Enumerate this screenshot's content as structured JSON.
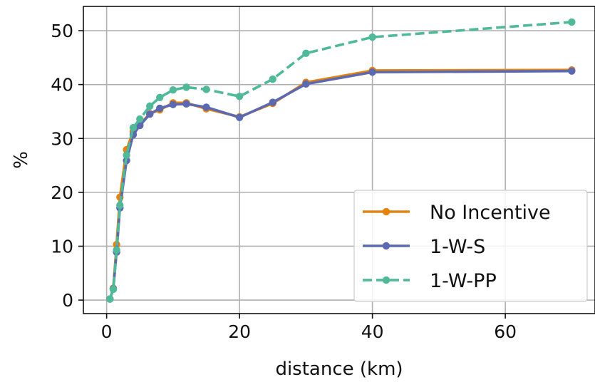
{
  "chart_data": {
    "type": "line",
    "xlabel": "distance (km)",
    "ylabel": "%",
    "xlim": [
      -3.5,
      73.5
    ],
    "ylim": [
      -2.5,
      54.5
    ],
    "xticks": [
      0,
      20,
      40,
      60
    ],
    "yticks": [
      0,
      10,
      20,
      30,
      40,
      50
    ],
    "grid": true,
    "legend_position": "lower-right",
    "series": [
      {
        "name": "No Incentive",
        "color": "#e6820e",
        "style": "solid",
        "x": [
          0.5,
          1,
          1.5,
          2,
          3,
          4,
          5,
          6.5,
          8,
          10,
          12,
          15,
          20,
          25,
          30,
          40,
          70
        ],
        "y": [
          0.2,
          2.2,
          10.3,
          19.1,
          27.9,
          31.3,
          32.6,
          34.6,
          35.3,
          36.6,
          36.6,
          35.5,
          34.0,
          36.5,
          40.4,
          42.6,
          42.7
        ]
      },
      {
        "name": "1-W-S",
        "color": "#5b6ab0",
        "style": "solid",
        "x": [
          0.5,
          1,
          1.5,
          2,
          3,
          4,
          5,
          6.5,
          8,
          10,
          12,
          15,
          20,
          25,
          30,
          40,
          70
        ],
        "y": [
          0.2,
          2.1,
          8.9,
          17.1,
          25.9,
          30.7,
          32.4,
          34.5,
          35.6,
          36.3,
          36.4,
          35.8,
          33.9,
          36.7,
          40.1,
          42.3,
          42.5
        ]
      },
      {
        "name": "1-W-PP",
        "color": "#4fb99a",
        "style": "dashed",
        "x": [
          0.5,
          1,
          1.5,
          2,
          3,
          4,
          5,
          6.5,
          8,
          10,
          12,
          15,
          20,
          25,
          30,
          40,
          70
        ],
        "y": [
          0.2,
          2.0,
          9.3,
          17.6,
          26.9,
          32.0,
          33.6,
          36.0,
          37.6,
          39.0,
          39.5,
          39.1,
          37.8,
          41.0,
          45.8,
          48.8,
          51.6
        ]
      }
    ]
  }
}
